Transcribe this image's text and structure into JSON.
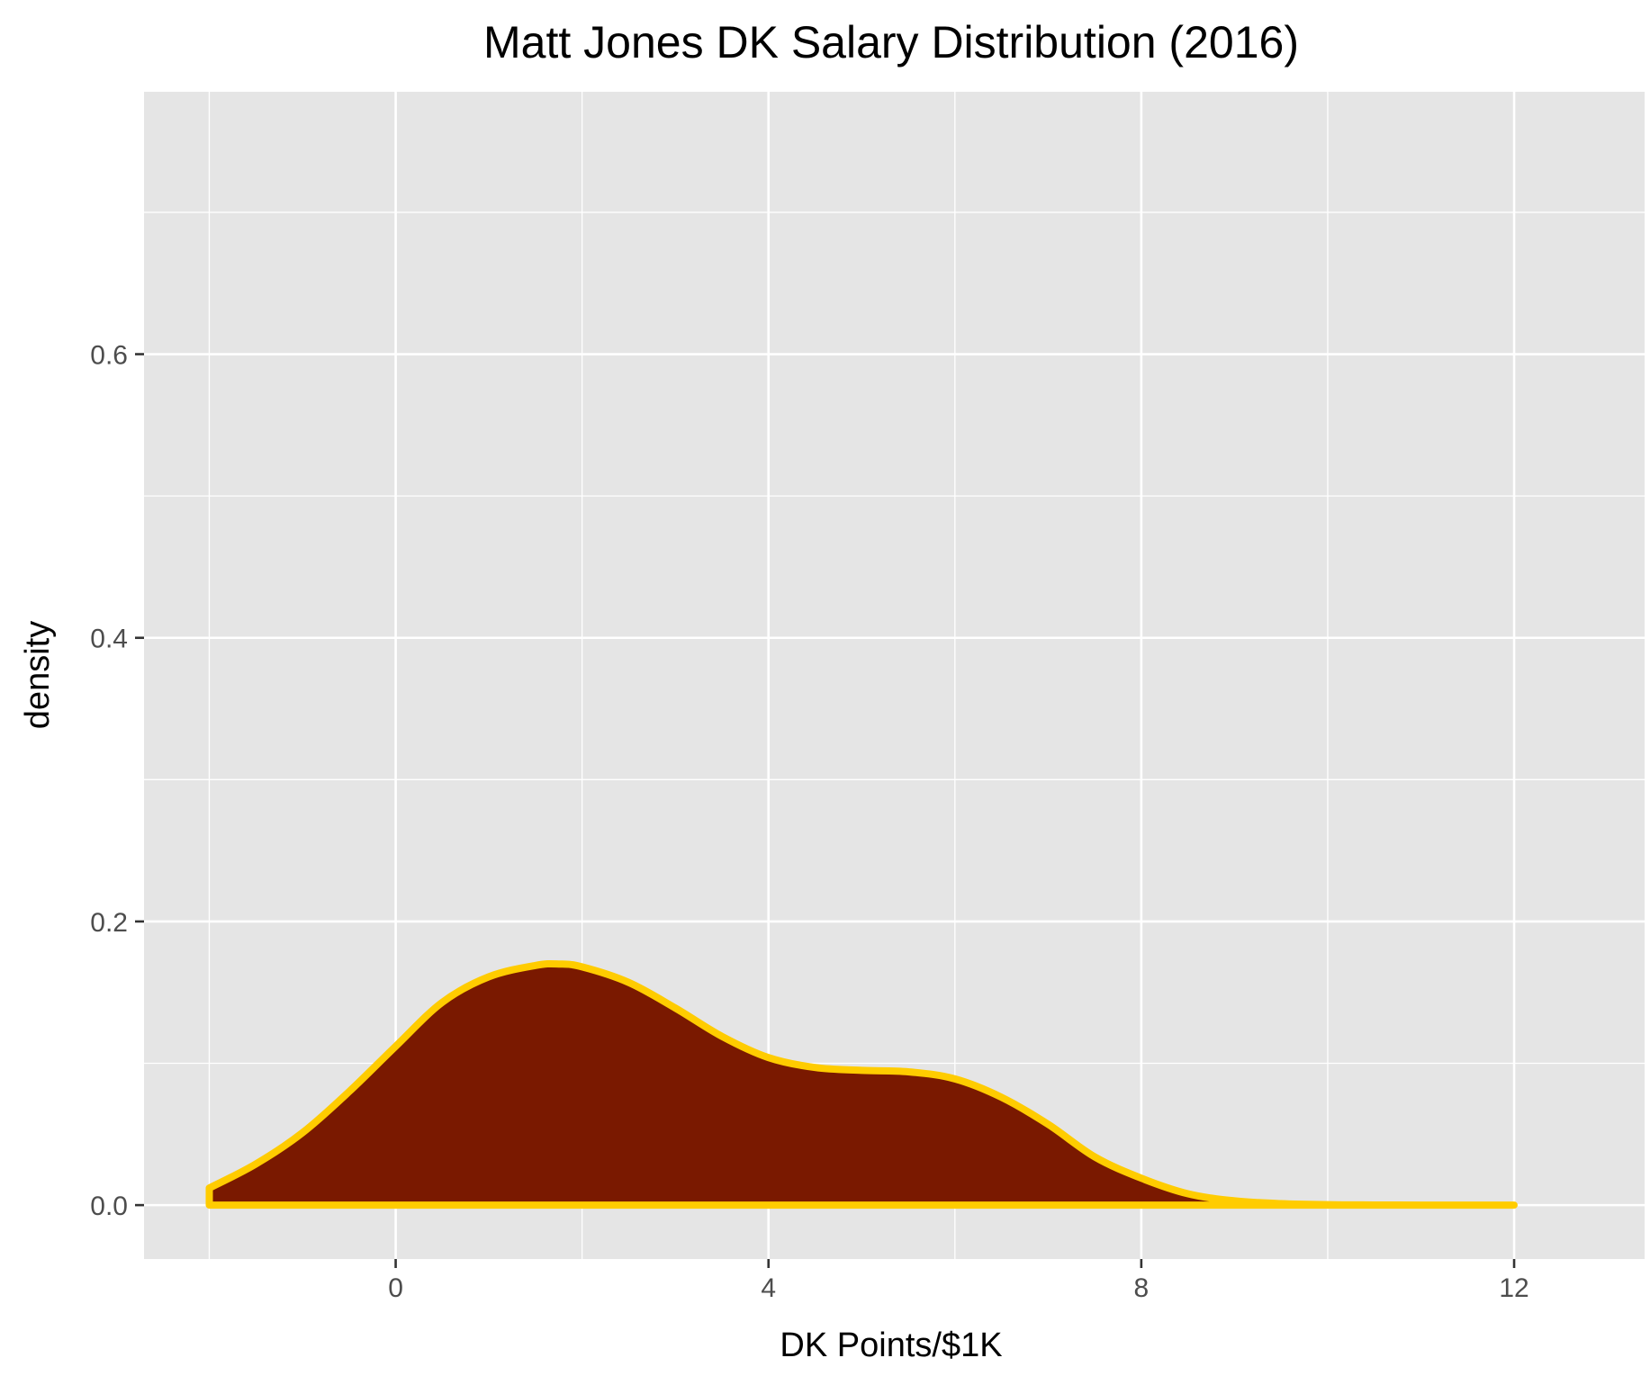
{
  "chart_data": {
    "type": "area",
    "title": "Matt Jones DK Salary Distribution (2016)",
    "xlabel": "DK Points/$1K",
    "ylabel": "density",
    "xlim": [
      -2.7,
      13.4
    ],
    "ylim": [
      -0.038,
      0.785
    ],
    "x_ticks": [
      0,
      4,
      8,
      12
    ],
    "x_tick_labels": [
      "0",
      "4",
      "8",
      "12"
    ],
    "y_ticks": [
      0.0,
      0.2,
      0.4,
      0.6
    ],
    "y_tick_labels": [
      "0.0",
      "0.2",
      "0.4",
      "0.6"
    ],
    "x_minor_ticks": [
      -2,
      2,
      6,
      10
    ],
    "y_minor_ticks": [
      0.1,
      0.3,
      0.5,
      0.7
    ],
    "grid": true,
    "legend": "none",
    "fill_color": "#7a1900",
    "line_color": "#ffcc00",
    "panel_color": "#e5e5e5",
    "grid_color": "#ffffff",
    "series": [
      {
        "x": [
          -2.0,
          -1.5,
          -1.0,
          -0.5,
          0.0,
          0.5,
          1.0,
          1.5,
          1.75,
          2.0,
          2.5,
          3.0,
          3.5,
          4.0,
          4.5,
          5.0,
          5.5,
          6.0,
          6.5,
          7.0,
          7.5,
          8.0,
          8.5,
          9.0,
          9.5,
          10.0,
          10.5,
          11.0,
          11.5,
          12.0
        ],
        "y": [
          0.012,
          0.029,
          0.051,
          0.08,
          0.112,
          0.143,
          0.161,
          0.169,
          0.17,
          0.168,
          0.157,
          0.139,
          0.119,
          0.104,
          0.097,
          0.095,
          0.094,
          0.089,
          0.076,
          0.057,
          0.034,
          0.019,
          0.008,
          0.003,
          0.001,
          0.0003,
          0.0001,
          0.0,
          0.0,
          0.0
        ]
      }
    ]
  }
}
